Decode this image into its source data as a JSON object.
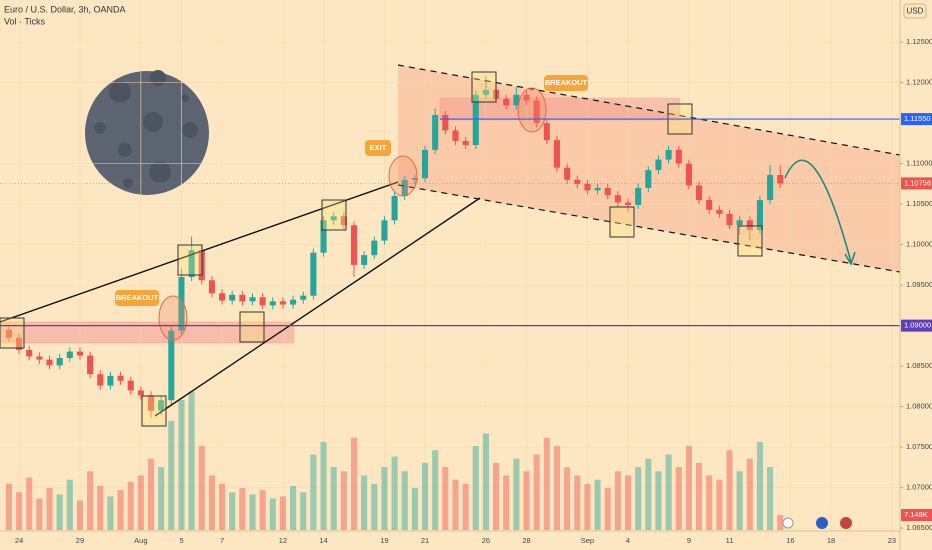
{
  "chart_data": {
    "type": "candlestick",
    "title": "Euro / U.S. Dollar, 3h, OANDA",
    "subtitle": "Vol · Ticks",
    "currency": "USD",
    "up_color": "#26a69a",
    "down_color": "#ef5350",
    "xlim": [
      -0.94,
      43.4
    ],
    "ylim": [
      1.0623,
      1.1302
    ],
    "volume_lim": [
      0,
      71500
    ],
    "xticks": [
      {
        "value": 0,
        "label": "24"
      },
      {
        "value": 3,
        "label": "29"
      },
      {
        "value": 6,
        "label": "Aug"
      },
      {
        "value": 8,
        "label": "5"
      },
      {
        "value": 10,
        "label": "7"
      },
      {
        "value": 13,
        "label": "12"
      },
      {
        "value": 15,
        "label": "14"
      },
      {
        "value": 18,
        "label": "19"
      },
      {
        "value": 20,
        "label": "21"
      },
      {
        "value": 23,
        "label": "26"
      },
      {
        "value": 25,
        "label": "28"
      },
      {
        "value": 28,
        "label": "Sep"
      },
      {
        "value": 30,
        "label": "4"
      },
      {
        "value": 33,
        "label": "9"
      },
      {
        "value": 35,
        "label": "11"
      },
      {
        "value": 38,
        "label": "16"
      },
      {
        "value": 40,
        "label": "18"
      },
      {
        "value": 43,
        "label": "23"
      }
    ],
    "yticks": [
      {
        "value": 1.125,
        "label": "1.12500"
      },
      {
        "value": 1.12,
        "label": "1.12000"
      },
      {
        "value": 1.11,
        "label": "1.11000"
      },
      {
        "value": 1.105,
        "label": "1.10500"
      },
      {
        "value": 1.1,
        "label": "1.10000"
      },
      {
        "value": 1.095,
        "label": "1.09500"
      },
      {
        "value": 1.085,
        "label": "1.08500"
      },
      {
        "value": 1.08,
        "label": "1.08000"
      },
      {
        "value": 1.075,
        "label": "1.07500"
      },
      {
        "value": 1.07,
        "label": "1.07000"
      },
      {
        "value": 1.065,
        "label": "1.06500"
      }
    ],
    "hlines": [
      {
        "value": 1.1155,
        "label": "1.11550",
        "color": "#2962ff"
      },
      {
        "value": 1.09,
        "label": "1.09000",
        "color": "#5b3fb5"
      }
    ],
    "last_price": {
      "value": 1.10756,
      "label": "1.10756"
    },
    "annotations": [
      "BREAKOUT",
      "EXIT",
      "BREAKOUT"
    ],
    "x": [
      -0.5,
      0,
      0.5,
      1,
      1.5,
      2,
      2.5,
      3,
      3.5,
      4,
      4.5,
      5,
      5.5,
      6,
      6.5,
      7,
      7.5,
      8,
      8.5,
      9,
      9.5,
      10,
      10.5,
      11,
      11.5,
      12,
      12.5,
      13,
      13.5,
      14,
      14.5,
      15,
      15.5,
      16,
      16.5,
      17,
      17.5,
      18,
      18.5,
      19,
      19.5,
      20,
      20.5,
      21,
      21.5,
      22,
      22.5,
      23,
      23.5,
      24,
      24.5,
      25,
      25.5,
      26,
      26.5,
      27,
      27.5,
      28,
      28.5,
      29,
      29.5,
      30,
      30.5,
      31,
      31.5,
      32,
      32.5,
      33,
      33.5,
      34,
      34.5,
      35,
      35.5,
      36,
      36.5,
      37,
      37.5
    ],
    "open": [
      1.0895,
      1.0885,
      1.087,
      1.0862,
      1.0858,
      1.0851,
      1.086,
      1.0868,
      1.0863,
      1.084,
      1.0826,
      1.0838,
      1.0832,
      1.082,
      1.0814,
      1.0795,
      1.0808,
      1.0894,
      1.096,
      1.0993,
      1.0956,
      1.094,
      1.0931,
      1.0938,
      1.093,
      1.0935,
      1.0925,
      1.093,
      1.0926,
      1.0932,
      1.0937,
      1.099,
      1.103,
      1.1035,
      1.1024,
      1.0975,
      1.0987,
      1.1005,
      1.103,
      1.106,
      1.108,
      1.1082,
      1.1117,
      1.116,
      1.1141,
      1.1128,
      1.1123,
      1.1185,
      1.1191,
      1.118,
      1.1172,
      1.1185,
      1.1178,
      1.115,
      1.1129,
      1.1095,
      1.108,
      1.1075,
      1.1067,
      1.107,
      1.1061,
      1.1052,
      1.1049,
      1.107,
      1.1092,
      1.1105,
      1.1117,
      1.11,
      1.1073,
      1.1055,
      1.1043,
      1.1038,
      1.1024,
      1.103,
      1.1018,
      1.1055,
      1.1086
    ],
    "high": [
      1.09,
      1.089,
      1.0875,
      1.0867,
      1.0863,
      1.0865,
      1.0873,
      1.0873,
      1.0868,
      1.0845,
      1.0843,
      1.0843,
      1.0837,
      1.0825,
      1.0819,
      1.0813,
      1.0899,
      1.097,
      1.101,
      1.0998,
      1.0961,
      1.0945,
      1.0943,
      1.0943,
      1.094,
      1.094,
      1.0935,
      1.0935,
      1.0937,
      1.0942,
      1.0995,
      1.1035,
      1.104,
      1.104,
      1.1029,
      1.0992,
      1.101,
      1.1035,
      1.1065,
      1.1085,
      1.1087,
      1.1122,
      1.1168,
      1.1165,
      1.1146,
      1.1133,
      1.119,
      1.1208,
      1.1196,
      1.1185,
      1.1195,
      1.119,
      1.1183,
      1.1155,
      1.1134,
      1.11,
      1.1085,
      1.108,
      1.1075,
      1.1075,
      1.1066,
      1.1057,
      1.1075,
      1.1097,
      1.111,
      1.1122,
      1.1122,
      1.1105,
      1.1078,
      1.106,
      1.1048,
      1.1043,
      1.1035,
      1.1035,
      1.106,
      1.1098,
      1.1098
    ],
    "low": [
      1.088,
      1.0865,
      1.0857,
      1.0853,
      1.0846,
      1.0846,
      1.0855,
      1.0858,
      1.0835,
      1.0821,
      1.0821,
      1.0827,
      1.0815,
      1.0809,
      1.0786,
      1.079,
      1.0803,
      1.0889,
      1.0955,
      1.0951,
      1.0935,
      1.0926,
      1.0926,
      1.0925,
      1.0925,
      1.092,
      1.092,
      1.0921,
      1.0921,
      1.0927,
      1.0932,
      1.0985,
      1.1025,
      1.1019,
      1.096,
      1.097,
      1.0982,
      1.1,
      1.1025,
      1.1055,
      1.1075,
      1.1077,
      1.1112,
      1.1136,
      1.1123,
      1.1118,
      1.1118,
      1.118,
      1.1175,
      1.1167,
      1.1167,
      1.1173,
      1.1145,
      1.1124,
      1.109,
      1.1075,
      1.107,
      1.1062,
      1.1062,
      1.1056,
      1.1047,
      1.104,
      1.1044,
      1.1065,
      1.1087,
      1.11,
      1.1095,
      1.1068,
      1.105,
      1.1038,
      1.1033,
      1.1019,
      1.1012,
      1.1005,
      1.1013,
      1.105,
      1.107
    ],
    "close": [
      1.0885,
      1.087,
      1.0862,
      1.0858,
      1.0851,
      1.086,
      1.0868,
      1.0863,
      1.084,
      1.0826,
      1.0838,
      1.0832,
      1.082,
      1.0814,
      1.0795,
      1.0808,
      1.0894,
      1.096,
      1.0993,
      1.0956,
      1.094,
      1.0931,
      1.0938,
      1.093,
      1.0935,
      1.0925,
      1.093,
      1.0926,
      1.0932,
      1.0937,
      1.099,
      1.103,
      1.1035,
      1.1024,
      1.0975,
      1.0987,
      1.1005,
      1.103,
      1.106,
      1.108,
      1.1082,
      1.1117,
      1.116,
      1.1141,
      1.1128,
      1.1123,
      1.1185,
      1.1191,
      1.118,
      1.1172,
      1.1185,
      1.1178,
      1.115,
      1.1129,
      1.1095,
      1.108,
      1.1075,
      1.1067,
      1.107,
      1.1061,
      1.1052,
      1.1049,
      1.107,
      1.1092,
      1.1105,
      1.1117,
      1.11,
      1.1073,
      1.1055,
      1.1043,
      1.1038,
      1.1024,
      1.103,
      1.1018,
      1.1055,
      1.1086,
      1.10756
    ],
    "volume": [
      22000,
      18000,
      25000,
      15000,
      20000,
      17000,
      24000,
      14000,
      28000,
      21000,
      16000,
      19000,
      23000,
      26000,
      34000,
      30000,
      52000,
      62000,
      66000,
      40000,
      26000,
      22000,
      18000,
      20000,
      17000,
      19000,
      15000,
      16000,
      21000,
      18000,
      36000,
      42000,
      30000,
      28000,
      44000,
      26000,
      22000,
      30000,
      35000,
      28000,
      20000,
      32000,
      38000,
      30000,
      24000,
      22000,
      40000,
      46000,
      32000,
      26000,
      34000,
      28000,
      36000,
      44000,
      40000,
      30000,
      26000,
      22000,
      24000,
      20000,
      28000,
      26000,
      30000,
      34000,
      28000,
      36000,
      30000,
      40000,
      32000,
      26000,
      24000,
      38000,
      28000,
      34000,
      42000,
      30000,
      7148
    ],
    "volume_value_label": "7.148K"
  }
}
